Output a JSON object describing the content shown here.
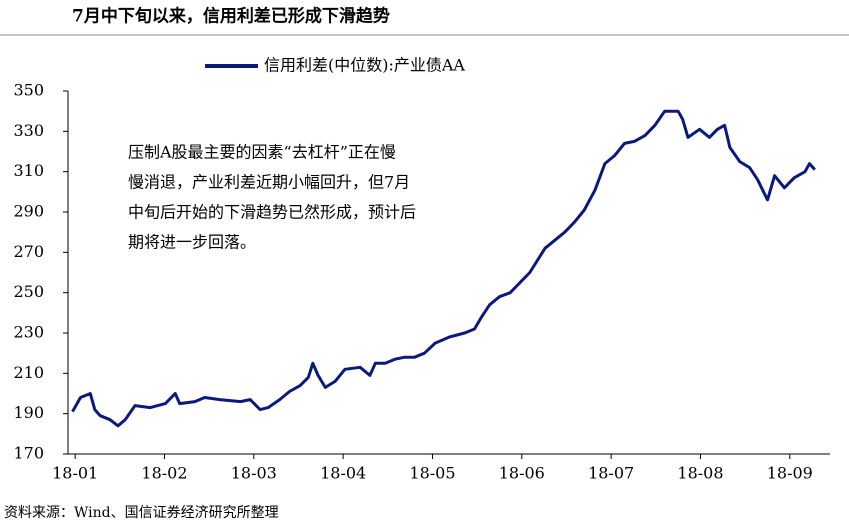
{
  "chart_data": {
    "type": "line",
    "title": "7月中下旬以来，信用利差已形成下滑趋势",
    "annotation": [
      "压制A股最主要的因素“去杠杆”正在慢",
      "慢消退，产业利差近期小幅回升，但7月",
      "中旬后开始的下滑趋势已然形成，预计后",
      "期将进一步回落。"
    ],
    "source": "资料来源：Wind、国信证券经济研究所整理",
    "x": [
      -0.03,
      0.06,
      0.17,
      0.22,
      0.28,
      0.39,
      0.48,
      0.56,
      0.67,
      0.84,
      1.01,
      1.12,
      1.17,
      1.34,
      1.45,
      1.62,
      1.85,
      1.96,
      2.07,
      2.16,
      2.29,
      2.4,
      2.52,
      2.61,
      2.66,
      2.72,
      2.8,
      2.91,
      3.02,
      3.19,
      3.3,
      3.36,
      3.47,
      3.58,
      3.69,
      3.8,
      3.91,
      4.03,
      4.19,
      4.36,
      4.47,
      4.55,
      4.64,
      4.75,
      4.87,
      4.98,
      5.09,
      5.26,
      5.37,
      5.48,
      5.59,
      5.7,
      5.82,
      5.93,
      6.04,
      6.15,
      6.26,
      6.38,
      6.49,
      6.6,
      6.75,
      6.8,
      6.86,
      6.99,
      7.1,
      7.19,
      7.27,
      7.33,
      7.44,
      7.55,
      7.64,
      7.75,
      7.83,
      7.94,
      8.05,
      8.17,
      8.22,
      8.28
    ],
    "series": [
      {
        "name": "信用利差(中位数):产业债AA",
        "color": "#0b1a7a",
        "values": [
          191,
          198,
          200,
          192,
          189,
          187,
          184,
          187,
          194,
          193,
          195,
          200,
          195,
          196,
          198,
          197,
          196,
          197,
          192,
          193,
          197,
          201,
          204,
          208,
          215,
          209,
          203,
          206,
          212,
          213,
          209,
          215,
          215,
          217,
          218,
          218,
          220,
          225,
          228,
          230,
          232,
          238,
          244,
          248,
          250,
          255,
          260,
          272,
          276,
          280,
          285,
          291,
          301,
          314,
          318,
          324,
          325,
          328,
          333,
          340,
          340,
          336,
          327,
          331,
          327,
          331,
          333,
          322,
          315,
          312,
          306,
          296,
          308,
          302,
          307,
          310,
          314,
          311
        ]
      }
    ],
    "xlim": [
      -0.08,
      8.45
    ],
    "xticks": [
      {
        "value": 0,
        "label": "18-01"
      },
      {
        "value": 1,
        "label": "18-02"
      },
      {
        "value": 2,
        "label": "18-03"
      },
      {
        "value": 3,
        "label": "18-04"
      },
      {
        "value": 4,
        "label": "18-05"
      },
      {
        "value": 5,
        "label": "18-06"
      },
      {
        "value": 6,
        "label": "18-07"
      },
      {
        "value": 7,
        "label": "18-08"
      },
      {
        "value": 8,
        "label": "18-09"
      }
    ],
    "ylim": [
      170,
      350
    ],
    "yticks": [
      170,
      190,
      210,
      230,
      250,
      270,
      290,
      310,
      330,
      350
    ],
    "grid": false
  }
}
